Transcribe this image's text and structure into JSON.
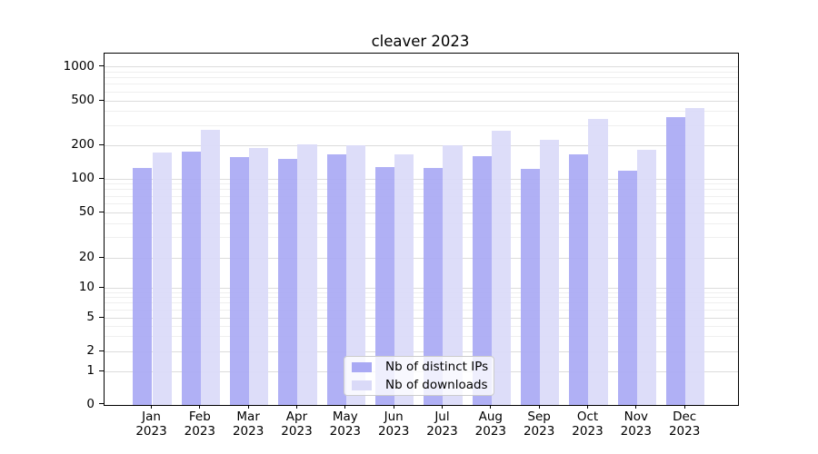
{
  "chart_data": {
    "type": "bar",
    "title": "cleaver 2023",
    "categories": [
      "Jan 2023",
      "Feb 2023",
      "Mar 2023",
      "Apr 2023",
      "May 2023",
      "Jun 2023",
      "Jul 2023",
      "Aug 2023",
      "Sep 2023",
      "Oct 2023",
      "Nov 2023",
      "Dec 2023"
    ],
    "series": [
      {
        "name": "Nb of distinct IPs",
        "color": "#a9a9f4",
        "values": [
          125,
          176,
          157,
          151,
          166,
          128,
          125,
          160,
          123,
          166,
          118,
          359
        ]
      },
      {
        "name": "Nb of downloads",
        "color": "#dadaf8",
        "values": [
          172,
          275,
          189,
          204,
          200,
          166,
          200,
          270,
          224,
          342,
          183,
          433
        ]
      }
    ],
    "yscale": "symlog",
    "yticks": [
      0,
      1,
      2,
      5,
      10,
      20,
      50,
      100,
      200,
      500,
      1000
    ],
    "minor_yticks": [
      3,
      4,
      6,
      7,
      8,
      9,
      30,
      40,
      60,
      70,
      80,
      90,
      300,
      400,
      600,
      700,
      800,
      900
    ],
    "ylim": [
      0,
      1400
    ],
    "grid": "on",
    "legend_position": "lower center"
  }
}
